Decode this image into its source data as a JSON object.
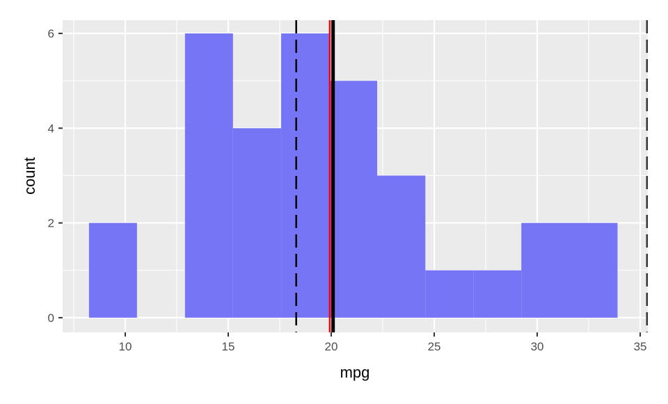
{
  "chart_data": {
    "type": "bar",
    "subtype": "histogram",
    "title": "",
    "xlabel": "mpg",
    "ylabel": "count",
    "xlim": [
      6.96,
      35.37
    ],
    "ylim": [
      -0.31,
      6.28
    ],
    "xticks": [
      10,
      15,
      20,
      25,
      30,
      35
    ],
    "yticks": [
      0,
      2,
      4,
      6
    ],
    "grid": true,
    "bins": [
      {
        "x0": 8.24,
        "x1": 10.57,
        "count": 2
      },
      {
        "x0": 10.57,
        "x1": 12.9,
        "count": 0
      },
      {
        "x0": 12.9,
        "x1": 15.23,
        "count": 6
      },
      {
        "x0": 15.23,
        "x1": 17.57,
        "count": 4
      },
      {
        "x0": 17.57,
        "x1": 19.9,
        "count": 6
      },
      {
        "x0": 19.9,
        "x1": 22.23,
        "count": 5
      },
      {
        "x0": 22.23,
        "x1": 24.57,
        "count": 3
      },
      {
        "x0": 24.57,
        "x1": 26.9,
        "count": 1
      },
      {
        "x0": 26.9,
        "x1": 29.23,
        "count": 1
      },
      {
        "x0": 29.23,
        "x1": 31.57,
        "count": 2
      },
      {
        "x0": 31.57,
        "x1": 33.9,
        "count": 2
      }
    ],
    "vlines": [
      {
        "x": 18.3,
        "color": "#000000",
        "style": "dashed"
      },
      {
        "x": 19.93,
        "color": "#ff0000",
        "style": "solid"
      },
      {
        "x": 20.09,
        "color": "#000000",
        "style": "solid-thick"
      },
      {
        "x": 35.33,
        "color": "#333333",
        "style": "dashed"
      }
    ],
    "colors": {
      "bar": "#7575f5",
      "panel": "#ebebeb",
      "grid": "#ffffff"
    }
  }
}
